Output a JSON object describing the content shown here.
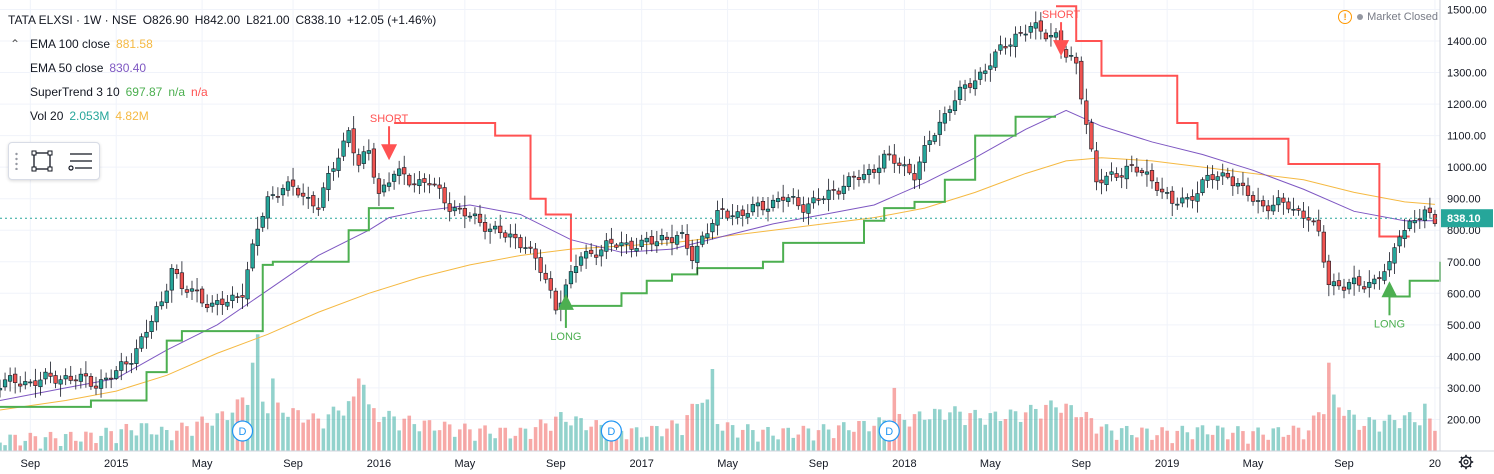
{
  "header": {
    "symbol": "TATA ELXSI · 1W · NSE",
    "open": "O826.90",
    "high": "H842.00",
    "low": "L821.00",
    "close": "C838.10",
    "change": "+12.05 (+1.46%)"
  },
  "indicators": [
    {
      "label": "EMA 100 close",
      "value": "881.58",
      "value2": "",
      "value3": ""
    },
    {
      "label": "EMA 50 close",
      "value": "830.40",
      "value2": "",
      "value3": ""
    },
    {
      "label": "SuperTrend 3 10",
      "value": "697.87",
      "value2": "n/a",
      "value3": "n/a"
    },
    {
      "label": "Vol 20",
      "value": "2.053M",
      "value2": "4.82M",
      "value3": ""
    }
  ],
  "status": {
    "market": "Market Closed"
  },
  "colors": {
    "up": "#26a69a",
    "down": "#ef5350",
    "ema100": "#f5b942",
    "ema50": "#7e57c2",
    "st_up": "#4caf50",
    "st_down": "#ff5252",
    "price_label": "#26a69a"
  },
  "chart_data": {
    "type": "candlestick",
    "symbol": "TATA ELXSI",
    "interval": "1W",
    "exchange": "NSE",
    "y_axis": {
      "ticks": [
        200,
        300,
        400,
        500,
        600,
        700,
        800,
        900,
        1000,
        1100,
        1200,
        1300,
        1400,
        1500
      ],
      "range": [
        100,
        1530
      ]
    },
    "x_axis": {
      "ticks": [
        {
          "label": "Sep",
          "t": -17
        },
        {
          "label": "2015",
          "t": 0
        },
        {
          "label": "May",
          "t": 17
        },
        {
          "label": "Sep",
          "t": 35
        },
        {
          "label": "2016",
          "t": 52
        },
        {
          "label": "May",
          "t": 69
        },
        {
          "label": "Sep",
          "t": 87
        },
        {
          "label": "2017",
          "t": 104
        },
        {
          "label": "May",
          "t": 121
        },
        {
          "label": "Sep",
          "t": 139
        },
        {
          "label": "2018",
          "t": 156
        },
        {
          "label": "May",
          "t": 173
        },
        {
          "label": "Sep",
          "t": 191
        },
        {
          "label": "2019",
          "t": 208
        },
        {
          "label": "May",
          "t": 225
        },
        {
          "label": "Sep",
          "t": 243
        },
        {
          "label": "20",
          "t": 261
        }
      ],
      "range_weeks": [
        -23,
        262
      ]
    },
    "last_price": {
      "value": 838.1,
      "label": "838.10"
    },
    "price_path": [
      [
        -23,
        315
      ],
      [
        -17,
        320
      ],
      [
        -10,
        335
      ],
      [
        -4,
        315
      ],
      [
        0,
        345
      ],
      [
        3,
        400
      ],
      [
        6,
        480
      ],
      [
        9,
        570
      ],
      [
        11,
        690
      ],
      [
        13,
        610
      ],
      [
        16,
        600
      ],
      [
        19,
        560
      ],
      [
        22,
        570
      ],
      [
        25,
        610
      ],
      [
        28,
        800
      ],
      [
        30,
        900
      ],
      [
        33,
        940
      ],
      [
        36,
        920
      ],
      [
        40,
        880
      ],
      [
        43,
        1000
      ],
      [
        46,
        1120
      ],
      [
        48,
        1000
      ],
      [
        50,
        1050
      ],
      [
        52,
        920
      ],
      [
        55,
        980
      ],
      [
        58,
        960
      ],
      [
        62,
        950
      ],
      [
        66,
        880
      ],
      [
        70,
        840
      ],
      [
        73,
        820
      ],
      [
        77,
        780
      ],
      [
        81,
        760
      ],
      [
        83,
        700
      ],
      [
        85,
        640
      ],
      [
        87,
        560
      ],
      [
        90,
        650
      ],
      [
        92,
        720
      ],
      [
        96,
        740
      ],
      [
        100,
        760
      ],
      [
        104,
        750
      ],
      [
        108,
        780
      ],
      [
        112,
        770
      ],
      [
        114,
        720
      ],
      [
        116,
        780
      ],
      [
        120,
        860
      ],
      [
        124,
        850
      ],
      [
        128,
        880
      ],
      [
        132,
        900
      ],
      [
        136,
        880
      ],
      [
        140,
        900
      ],
      [
        144,
        950
      ],
      [
        148,
        970
      ],
      [
        152,
        1030
      ],
      [
        156,
        1000
      ],
      [
        158,
        980
      ],
      [
        161,
        1080
      ],
      [
        165,
        1200
      ],
      [
        170,
        1280
      ],
      [
        174,
        1350
      ],
      [
        178,
        1420
      ],
      [
        181,
        1440
      ],
      [
        183,
        1430
      ],
      [
        186,
        1420
      ],
      [
        188,
        1350
      ],
      [
        190,
        1320
      ],
      [
        192,
        1150
      ],
      [
        194,
        950
      ],
      [
        196,
        960
      ],
      [
        200,
        1000
      ],
      [
        203,
        980
      ],
      [
        206,
        950
      ],
      [
        209,
        880
      ],
      [
        212,
        900
      ],
      [
        216,
        960
      ],
      [
        220,
        980
      ],
      [
        223,
        920
      ],
      [
        227,
        880
      ],
      [
        232,
        880
      ],
      [
        236,
        840
      ],
      [
        238,
        780
      ],
      [
        240,
        640
      ],
      [
        243,
        620
      ],
      [
        246,
        630
      ],
      [
        249,
        640
      ],
      [
        252,
        680
      ],
      [
        254,
        800
      ],
      [
        257,
        830
      ],
      [
        259,
        850
      ],
      [
        261,
        838
      ]
    ],
    "volume_path": [
      [
        -23,
        120
      ],
      [
        -5,
        130
      ],
      [
        5,
        160
      ],
      [
        10,
        140
      ],
      [
        22,
        200
      ],
      [
        26,
        260
      ],
      [
        32,
        220
      ],
      [
        40,
        180
      ],
      [
        47,
        240
      ],
      [
        52,
        200
      ],
      [
        60,
        170
      ],
      [
        70,
        150
      ],
      [
        80,
        140
      ],
      [
        88,
        190
      ],
      [
        96,
        160
      ],
      [
        104,
        140
      ],
      [
        112,
        170
      ],
      [
        116,
        260
      ],
      [
        120,
        160
      ],
      [
        130,
        140
      ],
      [
        140,
        150
      ],
      [
        150,
        170
      ],
      [
        158,
        190
      ],
      [
        165,
        210
      ],
      [
        172,
        190
      ],
      [
        178,
        200
      ],
      [
        186,
        230
      ],
      [
        190,
        210
      ],
      [
        196,
        150
      ],
      [
        206,
        140
      ],
      [
        216,
        150
      ],
      [
        226,
        140
      ],
      [
        236,
        150
      ],
      [
        240,
        260
      ],
      [
        246,
        170
      ],
      [
        252,
        180
      ],
      [
        256,
        190
      ],
      [
        261,
        170
      ]
    ],
    "volume_spikes": [
      {
        "t": 28,
        "v": 470
      },
      {
        "t": 27,
        "v": 380
      },
      {
        "t": 31,
        "v": 330
      },
      {
        "t": 48,
        "v": 330
      },
      {
        "t": 49,
        "v": 310
      },
      {
        "t": 118,
        "v": 360
      },
      {
        "t": 154,
        "v": 300
      },
      {
        "t": 240,
        "v": 380
      },
      {
        "t": 259,
        "v": 250
      }
    ],
    "ema100_path": [
      [
        -23,
        230
      ],
      [
        -10,
        260
      ],
      [
        0,
        290
      ],
      [
        10,
        340
      ],
      [
        20,
        410
      ],
      [
        30,
        470
      ],
      [
        40,
        540
      ],
      [
        50,
        600
      ],
      [
        60,
        650
      ],
      [
        70,
        690
      ],
      [
        80,
        720
      ],
      [
        90,
        740
      ],
      [
        100,
        750
      ],
      [
        110,
        760
      ],
      [
        120,
        780
      ],
      [
        130,
        800
      ],
      [
        140,
        820
      ],
      [
        150,
        840
      ],
      [
        160,
        870
      ],
      [
        170,
        920
      ],
      [
        180,
        980
      ],
      [
        188,
        1020
      ],
      [
        195,
        1030
      ],
      [
        205,
        1020
      ],
      [
        215,
        1000
      ],
      [
        225,
        980
      ],
      [
        235,
        960
      ],
      [
        245,
        920
      ],
      [
        255,
        890
      ],
      [
        261,
        882
      ]
    ],
    "ema50_path": [
      [
        -23,
        260
      ],
      [
        -10,
        300
      ],
      [
        0,
        330
      ],
      [
        10,
        420
      ],
      [
        20,
        500
      ],
      [
        30,
        610
      ],
      [
        40,
        720
      ],
      [
        50,
        800
      ],
      [
        54,
        840
      ],
      [
        60,
        860
      ],
      [
        70,
        880
      ],
      [
        80,
        850
      ],
      [
        90,
        770
      ],
      [
        100,
        730
      ],
      [
        110,
        740
      ],
      [
        120,
        780
      ],
      [
        130,
        820
      ],
      [
        140,
        850
      ],
      [
        150,
        880
      ],
      [
        160,
        950
      ],
      [
        170,
        1030
      ],
      [
        180,
        1120
      ],
      [
        188,
        1180
      ],
      [
        195,
        1130
      ],
      [
        205,
        1080
      ],
      [
        215,
        1040
      ],
      [
        225,
        990
      ],
      [
        235,
        930
      ],
      [
        245,
        860
      ],
      [
        255,
        830
      ],
      [
        261,
        830
      ]
    ],
    "supertrend": [
      {
        "dir": "up",
        "path": [
          [
            -23,
            240
          ],
          [
            -5,
            260
          ],
          [
            6,
            350
          ],
          [
            10,
            450
          ],
          [
            13,
            480
          ],
          [
            20,
            480
          ],
          [
            26,
            480
          ],
          [
            29,
            690
          ],
          [
            31,
            700
          ],
          [
            36,
            700
          ],
          [
            43,
            700
          ],
          [
            46,
            800
          ],
          [
            50,
            870
          ],
          [
            55,
            870
          ]
        ]
      },
      {
        "dir": "down",
        "path": [
          [
            55,
            1140
          ],
          [
            58,
            1140
          ],
          [
            68,
            1140
          ],
          [
            75,
            1100
          ],
          [
            82,
            900
          ],
          [
            85,
            850
          ],
          [
            90,
            700
          ]
        ]
      },
      {
        "dir": "up",
        "path": [
          [
            90,
            560
          ],
          [
            95,
            560
          ],
          [
            100,
            600
          ],
          [
            105,
            640
          ],
          [
            110,
            660
          ],
          [
            115,
            680
          ],
          [
            120,
            680
          ],
          [
            128,
            700
          ],
          [
            132,
            760
          ],
          [
            142,
            760
          ],
          [
            148,
            830
          ],
          [
            152,
            870
          ],
          [
            158,
            890
          ],
          [
            164,
            960
          ],
          [
            170,
            1100
          ],
          [
            178,
            1160
          ],
          [
            184,
            1160
          ],
          [
            186,
            1160
          ]
        ]
      },
      {
        "dir": "down",
        "path": [
          [
            186,
            1510
          ],
          [
            190,
            1400
          ],
          [
            195,
            1290
          ],
          [
            205,
            1290
          ],
          [
            210,
            1140
          ],
          [
            214,
            1090
          ],
          [
            226,
            1090
          ],
          [
            232,
            1010
          ],
          [
            244,
            1010
          ],
          [
            250,
            780
          ],
          [
            256,
            780
          ]
        ]
      },
      {
        "dir": "up",
        "path": [
          [
            252,
            590
          ],
          [
            256,
            640
          ],
          [
            262,
            700
          ]
        ]
      }
    ],
    "signals": [
      {
        "type": "SHORT",
        "t": 54,
        "price": 1060,
        "label": "SHORT"
      },
      {
        "type": "LONG",
        "t": 89,
        "price": 560,
        "label": "LONG"
      },
      {
        "type": "SHORT",
        "t": 187,
        "price": 1390,
        "label": "SHORT"
      },
      {
        "type": "LONG",
        "t": 252,
        "price": 600,
        "label": "LONG"
      }
    ],
    "dividends": [
      {
        "t": 25,
        "label": "D"
      },
      {
        "t": 98,
        "label": "D"
      },
      {
        "t": 153,
        "label": "D"
      }
    ]
  }
}
